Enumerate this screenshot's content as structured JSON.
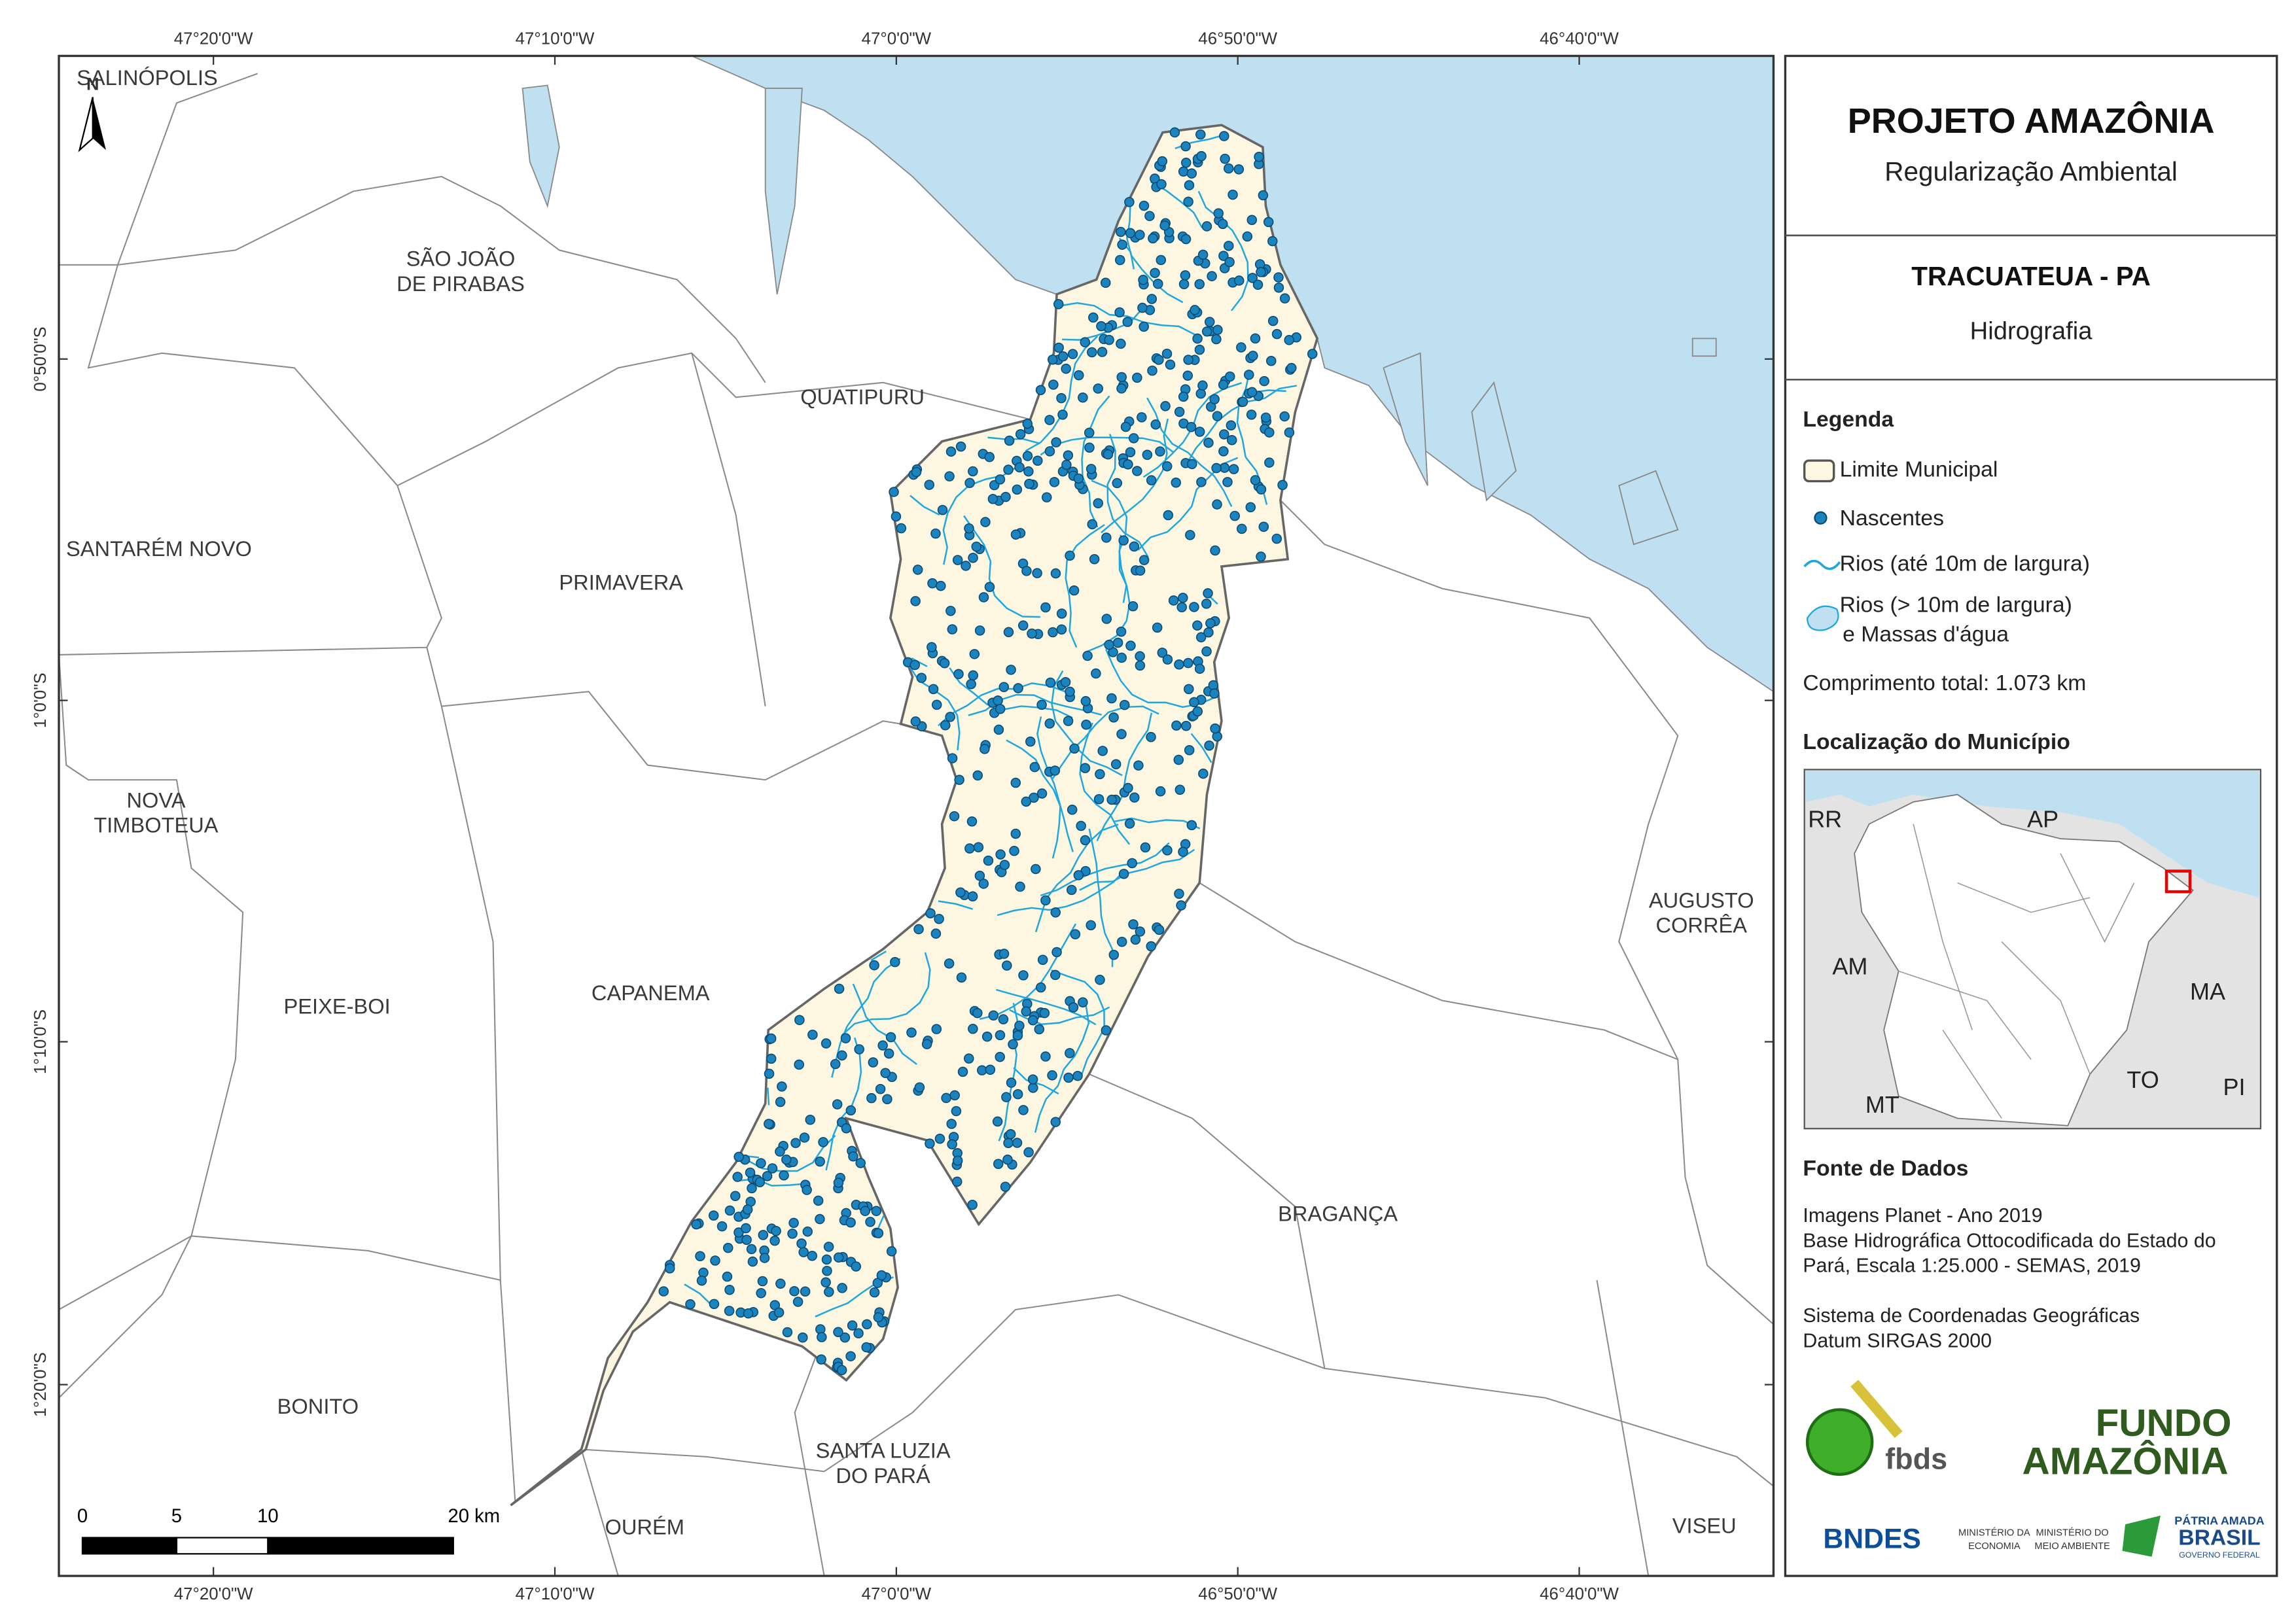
{
  "map": {
    "graticule": {
      "longitudes": [
        "47°20'0\"W",
        "47°10'0\"W",
        "47°0'0\"W",
        "46°50'0\"W",
        "46°40'0\"W"
      ],
      "latitudes": [
        "0°50'0\"S",
        "1°0'0\"S",
        "1°10'0\"S",
        "1°20'0\"S"
      ]
    },
    "north": "N",
    "places": [
      {
        "lines": [
          "SALINÓPOLIS"
        ]
      },
      {
        "lines": [
          "SÃO JOÃO",
          "DE PIRABAS"
        ]
      },
      {
        "lines": [
          "QUATIPURU"
        ]
      },
      {
        "lines": [
          "SANTARÉM NOVO"
        ]
      },
      {
        "lines": [
          "PRIMAVERA"
        ]
      },
      {
        "lines": [
          "NOVA",
          "TIMBOTEUA"
        ]
      },
      {
        "lines": [
          "PEIXE-BOI"
        ]
      },
      {
        "lines": [
          "CAPANEMA"
        ]
      },
      {
        "lines": [
          "BRAGANÇA"
        ]
      },
      {
        "lines": [
          "AUGUSTO",
          "CORRÊA"
        ]
      },
      {
        "lines": [
          "BONITO"
        ]
      },
      {
        "lines": [
          "SANTA LUZIA",
          "DO PARÁ"
        ]
      },
      {
        "lines": [
          "OURÉM"
        ]
      },
      {
        "lines": [
          "VISEU"
        ]
      }
    ],
    "scale_bar": [
      "0",
      "5",
      "10",
      "20 km"
    ]
  },
  "panel": {
    "title": "PROJETO AMAZÔNIA",
    "subtitle": "Regularização Ambiental",
    "municipality": "TRACUATEUA - PA",
    "theme": "Hidrografia",
    "legend": {
      "title": "Legenda",
      "items": [
        {
          "lines": [
            "Limite Municipal"
          ]
        },
        {
          "lines": [
            "Nascentes"
          ]
        },
        {
          "lines": [
            "Rios (até 10m de largura)"
          ]
        },
        {
          "lines": [
            "Rios (> 10m de largura)",
            "e Massas d'água"
          ]
        }
      ]
    },
    "total_length": "Comprimento total:  1.073 km",
    "location": {
      "title": "Localização do Município",
      "labels": [
        "RR",
        "AP",
        "AM",
        "MA",
        "TO",
        "MT",
        "PI"
      ]
    },
    "sources": {
      "title": "Fonte de Dados",
      "groups": [
        [
          "Imagens Planet - Ano 2019",
          "Base Hidrográfica Ottocodificada do Estado do",
          "Pará, Escala 1:25.000 - SEMAS, 2019"
        ],
        [
          "Sistema de Coordenadas Geográficas",
          "Datum SIRGAS 2000"
        ]
      ]
    },
    "logos": {
      "fbds": "fbds",
      "fundo": [
        "FUNDO",
        "AMAZÔNIA"
      ],
      "bndes": "BNDES",
      "ministry1": [
        "MINISTÉRIO DA",
        "ECONOMIA"
      ],
      "ministry2": [
        "MINISTÉRIO DO",
        "MEIO AMBIENTE"
      ],
      "gov": [
        "PÁTRIA AMADA",
        "BRASIL",
        "GOVERNO FEDERAL"
      ]
    }
  }
}
